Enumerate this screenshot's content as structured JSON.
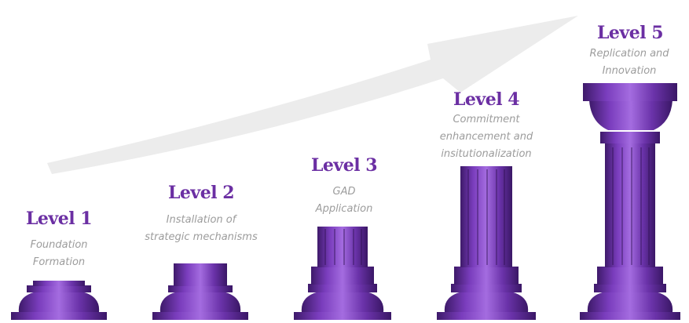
{
  "colors": {
    "heading": "#6b2fa3",
    "description": "#9c9c9c",
    "pillar_dark": "#3e1a6a",
    "pillar_mid": "#7a3dbd",
    "pillar_light": "#a46ce0",
    "arrow": "#ececec"
  },
  "levels": [
    {
      "label": "Level 1",
      "description": [
        "Foundation",
        "Formation"
      ]
    },
    {
      "label": "Level 2",
      "description": [
        "Installation of",
        "strategic mechanisms"
      ]
    },
    {
      "label": "Level 3",
      "description": [
        "GAD",
        "Application"
      ]
    },
    {
      "label": "Level 4",
      "description": [
        "Commitment",
        "enhancement and",
        "insitutionalization"
      ]
    },
    {
      "label": "Level 5",
      "description": [
        "Replication and",
        "Innovation"
      ]
    }
  ]
}
